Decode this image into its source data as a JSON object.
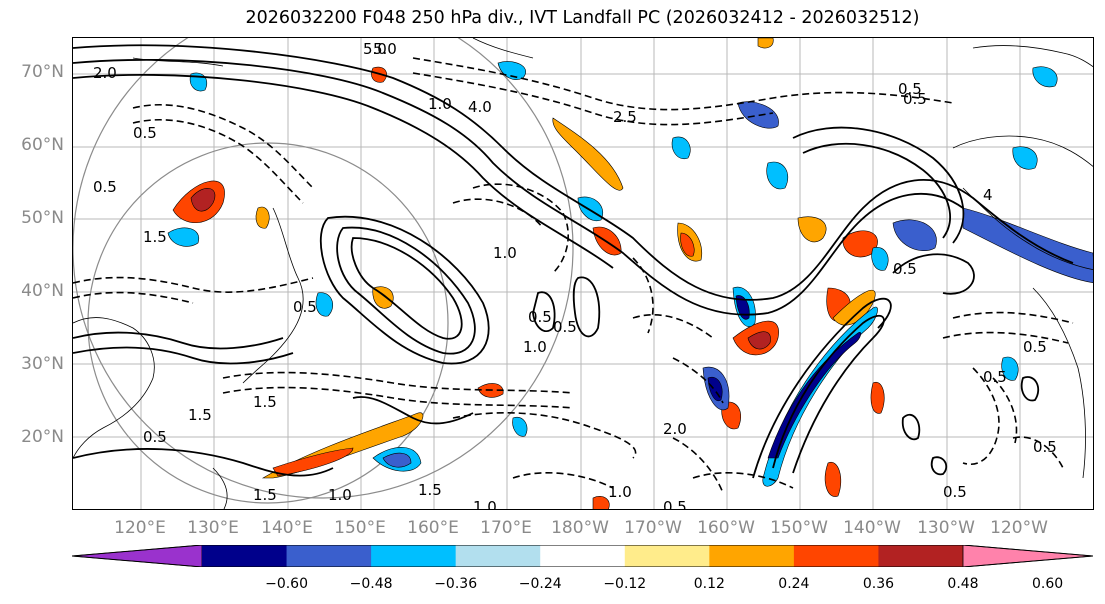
{
  "title": "2026032200 F048 250 hPa div., IVT Landfall PC (2026032412 - 2026032512)",
  "lat_labels": [
    "70°N",
    "60°N",
    "50°N",
    "40°N",
    "30°N",
    "20°N"
  ],
  "lon_labels": [
    "120°E",
    "130°E",
    "140°E",
    "150°E",
    "160°E",
    "170°E",
    "180°W",
    "170°W",
    "160°W",
    "150°W",
    "140°W",
    "130°W",
    "120°W"
  ],
  "colorbar": {
    "colors": [
      "#9a32cd",
      "#00008b",
      "#3a5fcd",
      "#00bfff",
      "#b2dfee",
      "#ffffff",
      "#ffec8b",
      "#ffa500",
      "#ff4500",
      "#b22222",
      "#ff82ab"
    ],
    "ticks": [
      "−0.60",
      "−0.48",
      "−0.36",
      "−0.24",
      "−0.12",
      "0.12",
      "0.24",
      "0.36",
      "0.48",
      "0.60"
    ]
  },
  "contour_labels": [
    "5.0",
    "2.0",
    "0.5",
    "1.0",
    "1.5",
    "4.0",
    "2.5",
    "0.5",
    "1.0",
    "1.5",
    "0.5",
    "2.0",
    "0.5",
    "5.0",
    "1.0",
    "0.5",
    "1.5",
    "1.0",
    "0.5",
    "4",
    "0.5",
    "1.0",
    "0.5",
    "0.5",
    "1.5",
    "0.5",
    "0.5",
    "0.5",
    "0.5",
    "1.5",
    "1.0",
    "0.5"
  ]
}
